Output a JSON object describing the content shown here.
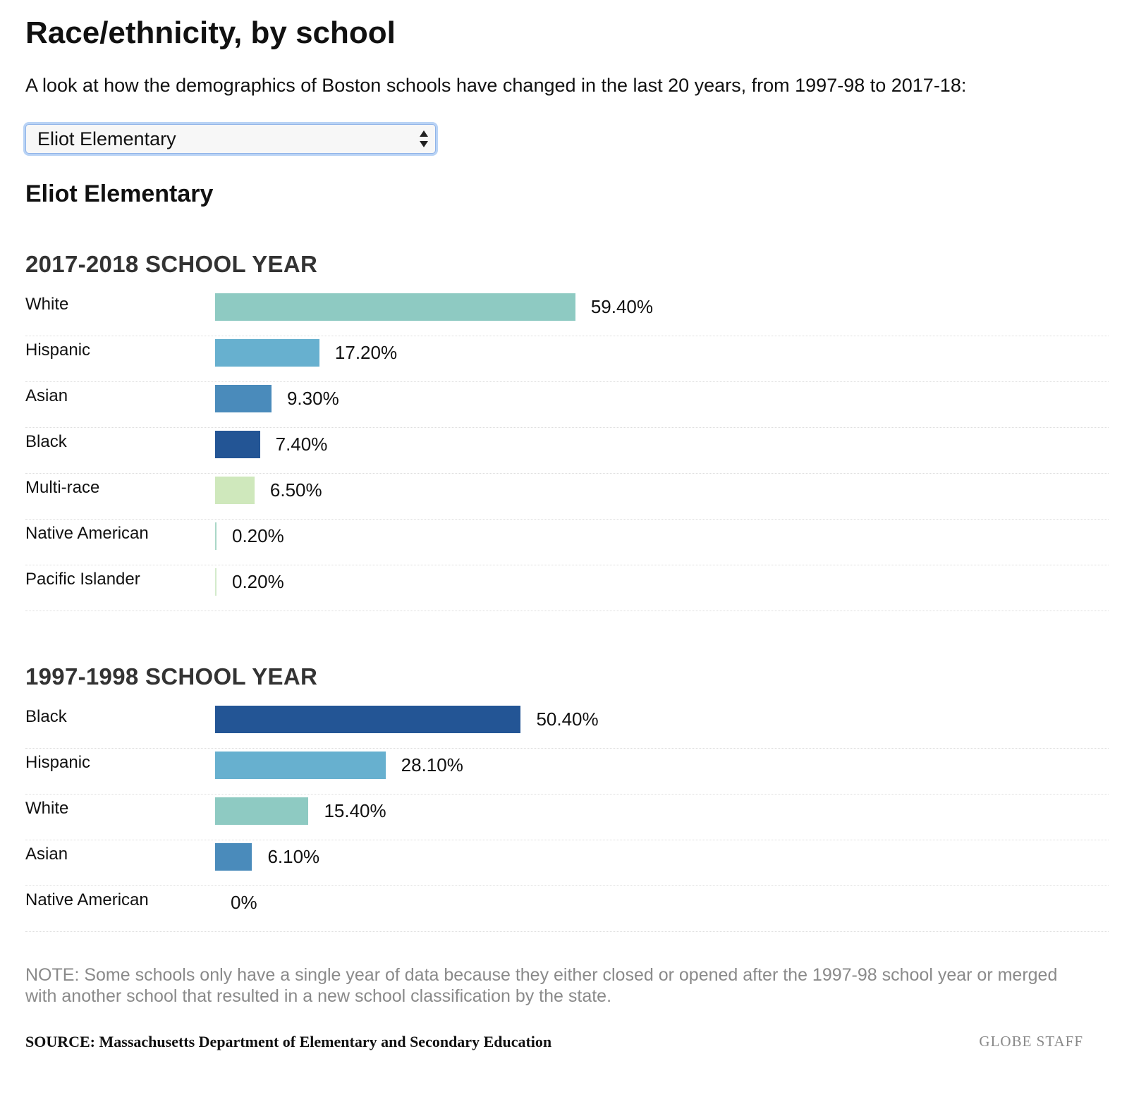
{
  "header": {
    "title": "Race/ethnicity, by school",
    "subtitle": "A look at how the demographics of Boston schools have changed in the last 20 years, from 1997-98 to 2017-18:"
  },
  "school_select": {
    "selected": "Eliot Elementary"
  },
  "school_name": "Eliot Elementary",
  "colors": {
    "White": "#8ecac2",
    "Hispanic": "#67b0cf",
    "Asian": "#4a8bbb",
    "Black": "#235595",
    "Multi-race": "#cfe8bc",
    "Native American": "#aad7c7",
    "Pacific Islander": "#d4ebcc"
  },
  "chart_data": [
    {
      "type": "bar",
      "orientation": "horizontal",
      "title": "2017-2018 SCHOOL YEAR",
      "categories": [
        "White",
        "Hispanic",
        "Asian",
        "Black",
        "Multi-race",
        "Native American",
        "Pacific Islander"
      ],
      "values": [
        59.4,
        17.2,
        9.3,
        7.4,
        6.5,
        0.2,
        0.2
      ],
      "value_labels": [
        "59.40%",
        "17.20%",
        "9.30%",
        "7.40%",
        "6.50%",
        "0.20%",
        "0.20%"
      ],
      "xlim": [
        0,
        100
      ],
      "grid": false
    },
    {
      "type": "bar",
      "orientation": "horizontal",
      "title": "1997-1998 SCHOOL YEAR",
      "categories": [
        "Black",
        "Hispanic",
        "White",
        "Asian",
        "Native American"
      ],
      "values": [
        50.4,
        28.1,
        15.4,
        6.1,
        0
      ],
      "value_labels": [
        "50.40%",
        "28.10%",
        "15.40%",
        "6.10%",
        "0%"
      ],
      "xlim": [
        0,
        100
      ],
      "grid": false
    }
  ],
  "footer": {
    "note": "NOTE: Some schools only have a single year of data because they either closed or opened after the 1997-98 school year or merged with another school that resulted in a new school classification by the state.",
    "source": "SOURCE: Massachusetts Department of Elementary and Secondary Education",
    "credit": "GLOBE STAFF"
  }
}
